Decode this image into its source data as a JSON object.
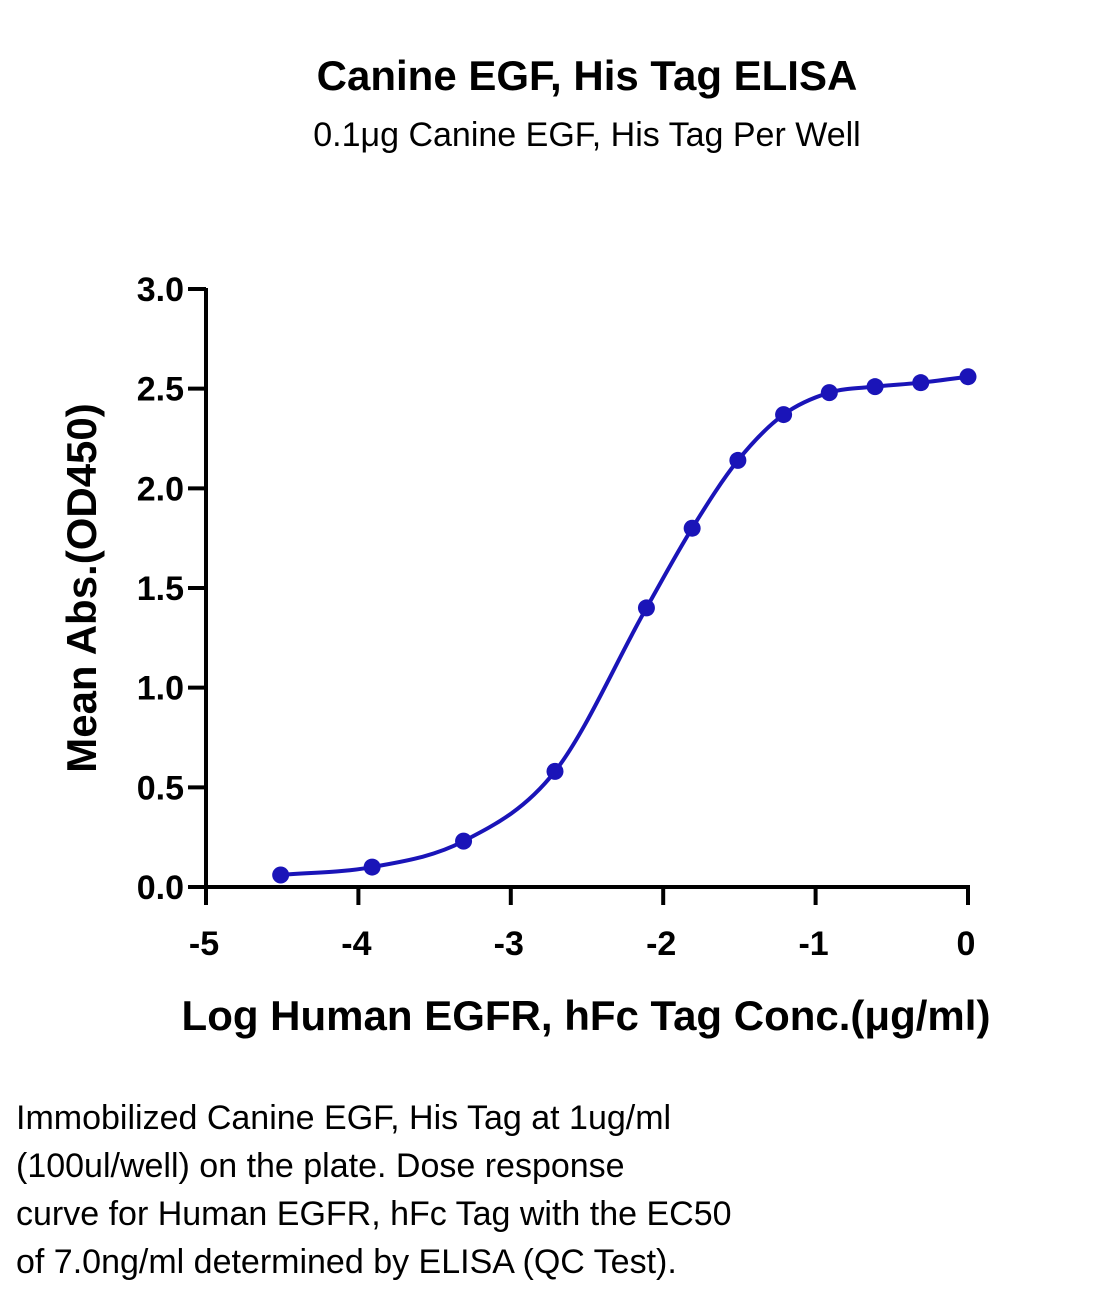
{
  "chart_data": {
    "type": "line",
    "title": "Canine EGF, His Tag ELISA",
    "subtitle": "0.1μg Canine EGF, His Tag Per Well",
    "xlabel": "Log Human EGFR, hFc Tag Conc.(μg/ml)",
    "ylabel": "Mean Abs.(OD450)",
    "xlim": [
      -5,
      0
    ],
    "ylim": [
      0,
      3.0
    ],
    "x_ticks": [
      "-5",
      "-4",
      "-3",
      "-2",
      "-1",
      "0"
    ],
    "y_ticks": [
      "0.0",
      "0.5",
      "1.0",
      "1.5",
      "2.0",
      "2.5",
      "3.0"
    ],
    "series": [
      {
        "color": "#1a14b8",
        "x": [
          -4.51,
          -3.91,
          -3.31,
          -2.71,
          -2.11,
          -1.81,
          -1.51,
          -1.21,
          -0.91,
          -0.61,
          -0.31,
          0.0
        ],
        "y": [
          0.06,
          0.1,
          0.23,
          0.58,
          1.4,
          1.8,
          2.14,
          2.37,
          2.48,
          2.51,
          2.53,
          2.56
        ]
      }
    ],
    "grid": false,
    "legend": "none"
  },
  "caption": {
    "lines": [
      "Immobilized Canine EGF, His Tag at 1ug/ml",
      "(100ul/well) on the plate. Dose response",
      "curve for Human EGFR, hFc Tag with the EC50",
      "of 7.0ng/ml determined by ELISA (QC Test)."
    ]
  }
}
